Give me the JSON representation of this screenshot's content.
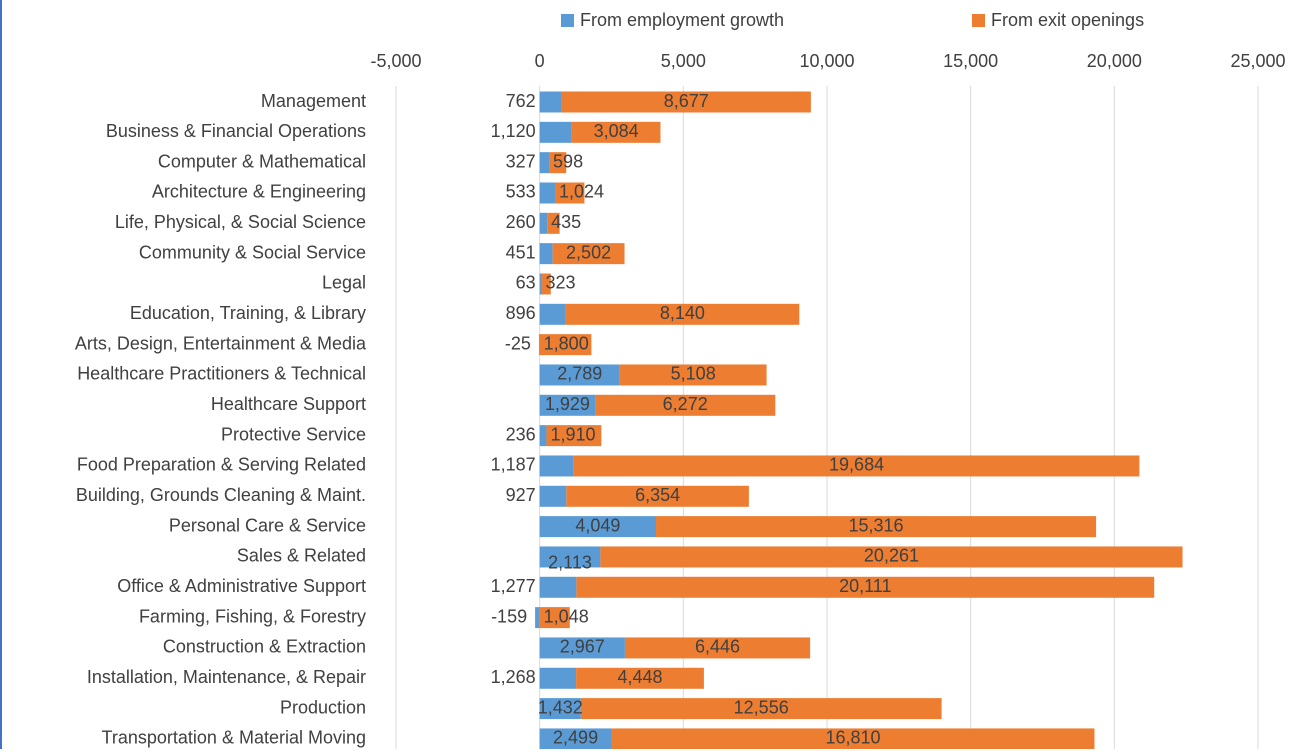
{
  "chart_data": {
    "type": "bar",
    "orientation": "horizontal",
    "stacked": true,
    "title": "",
    "xlabel": "",
    "ylabel": "",
    "xlim": [
      -5000,
      25000
    ],
    "x_ticks": [
      -5000,
      0,
      5000,
      10000,
      15000,
      20000,
      25000
    ],
    "x_tick_labels": [
      "-5,000",
      "0",
      "5,000",
      "10,000",
      "15,000",
      "20,000",
      "25,000"
    ],
    "grid": true,
    "legend_position": "top",
    "categories": [
      "Management",
      "Business & Financial Operations",
      "Computer & Mathematical",
      "Architecture & Engineering",
      "Life, Physical, & Social Science",
      "Community & Social Service",
      "Legal",
      "Education, Training, & Library",
      "Arts, Design, Entertainment & Media",
      "Healthcare Practitioners & Technical",
      "Healthcare Support",
      "Protective Service",
      "Food Preparation & Serving Related",
      "Building, Grounds Cleaning & Maint.",
      "Personal Care & Service",
      "Sales & Related",
      "Office & Administrative Support",
      "Farming, Fishing, & Forestry",
      "Construction & Extraction",
      "Installation, Maintenance, & Repair",
      "Production",
      "Transportation & Material Moving"
    ],
    "series": [
      {
        "name": "From employment growth",
        "color": "#5b9bd5",
        "values": [
          762,
          1120,
          327,
          533,
          260,
          451,
          63,
          896,
          -25,
          2789,
          1929,
          236,
          1187,
          927,
          4049,
          2113,
          1277,
          -159,
          2967,
          1268,
          1432,
          2499
        ],
        "labels": [
          "762",
          "1,120",
          "327",
          "533",
          "260",
          "451",
          "63",
          "896",
          "-25",
          "2,789",
          "1,929",
          "236",
          "1,187",
          "927",
          "4,049",
          "2,113",
          "1,277",
          "-159",
          "2,967",
          "1,268",
          "1,432",
          "2,499"
        ]
      },
      {
        "name": "From exit openings",
        "color": "#ed7d31",
        "values": [
          8677,
          3084,
          598,
          1024,
          435,
          2502,
          323,
          8140,
          1800,
          5108,
          6272,
          1910,
          19684,
          6354,
          15316,
          20261,
          20111,
          1048,
          6446,
          4448,
          12556,
          16810
        ],
        "labels": [
          "8,677",
          "3,084",
          "598",
          "1,024",
          "435",
          "2,502",
          "323",
          "8,140",
          "1,800",
          "5,108",
          "6,272",
          "1,910",
          "19,684",
          "6,354",
          "15,316",
          "20,261",
          "20,111",
          "1,048",
          "6,446",
          "4,448",
          "12,556",
          "16,810"
        ]
      }
    ]
  }
}
